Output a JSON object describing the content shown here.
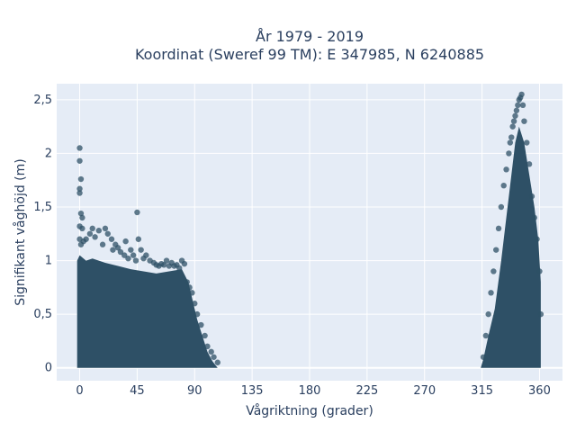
{
  "chart_data": {
    "type": "scatter",
    "title_line1": "År 1979 - 2019",
    "title_line2": "Koordinat (Sweref 99 TM): E 347985, N 6240885",
    "xlabel": "Vågriktning (grader)",
    "ylabel": "Signifikant våghöjd (m)",
    "xlim": [
      -18,
      378
    ],
    "ylim": [
      -0.12,
      2.65
    ],
    "xticks": [
      0,
      45,
      90,
      135,
      180,
      225,
      270,
      315,
      360
    ],
    "xtick_labels": [
      "0",
      "45",
      "90",
      "135",
      "180",
      "225",
      "270",
      "315",
      "360"
    ],
    "yticks": [
      0,
      0.5,
      1,
      1.5,
      2,
      2.5
    ],
    "ytick_labels": [
      "0",
      "0,5",
      "1",
      "1,5",
      "2",
      "2,5"
    ],
    "grid": true,
    "colors": {
      "background": "#e5ecf6",
      "marker": "#2e5066",
      "grid": "#ffffff",
      "text": "#2a3f5f"
    },
    "series": [
      {
        "x": [
          0,
          0,
          1,
          0,
          0,
          1,
          0,
          2,
          0,
          1,
          2,
          3,
          5,
          8,
          10,
          12,
          15,
          18,
          20,
          22,
          25,
          26,
          28,
          30,
          32,
          35,
          36,
          38,
          40,
          42,
          44,
          45,
          46,
          48,
          50,
          52,
          55,
          58,
          60,
          62,
          64,
          66,
          68,
          70,
          72,
          74,
          76,
          78,
          80,
          82,
          84,
          86,
          88,
          90,
          92,
          95,
          98,
          100,
          103,
          105,
          108,
          316,
          318,
          320,
          322,
          324,
          326,
          328,
          330,
          332,
          334,
          336,
          337,
          338,
          339,
          340,
          341,
          342,
          343,
          344,
          345,
          346,
          347,
          348,
          350,
          352,
          354,
          356,
          358,
          360,
          361
        ],
        "y": [
          2.05,
          1.93,
          1.76,
          1.67,
          1.63,
          1.44,
          1.32,
          1.4,
          1.2,
          1.15,
          1.3,
          1.18,
          1.2,
          1.25,
          1.3,
          1.22,
          1.28,
          1.15,
          1.3,
          1.25,
          1.2,
          1.1,
          1.15,
          1.12,
          1.08,
          1.05,
          1.18,
          1.02,
          1.1,
          1.05,
          1.0,
          1.45,
          1.2,
          1.1,
          1.02,
          1.05,
          1.0,
          0.98,
          0.96,
          0.95,
          0.97,
          0.96,
          1.0,
          0.95,
          0.98,
          0.95,
          0.96,
          0.93,
          1.0,
          0.97,
          0.8,
          0.75,
          0.7,
          0.6,
          0.5,
          0.4,
          0.3,
          0.2,
          0.15,
          0.1,
          0.05,
          0.1,
          0.3,
          0.5,
          0.7,
          0.9,
          1.1,
          1.3,
          1.5,
          1.7,
          1.85,
          2.0,
          2.1,
          2.15,
          2.25,
          2.3,
          2.35,
          2.4,
          2.45,
          2.5,
          2.52,
          2.55,
          2.45,
          2.3,
          2.1,
          1.9,
          1.6,
          1.4,
          1.2,
          0.9,
          0.5
        ]
      }
    ]
  }
}
